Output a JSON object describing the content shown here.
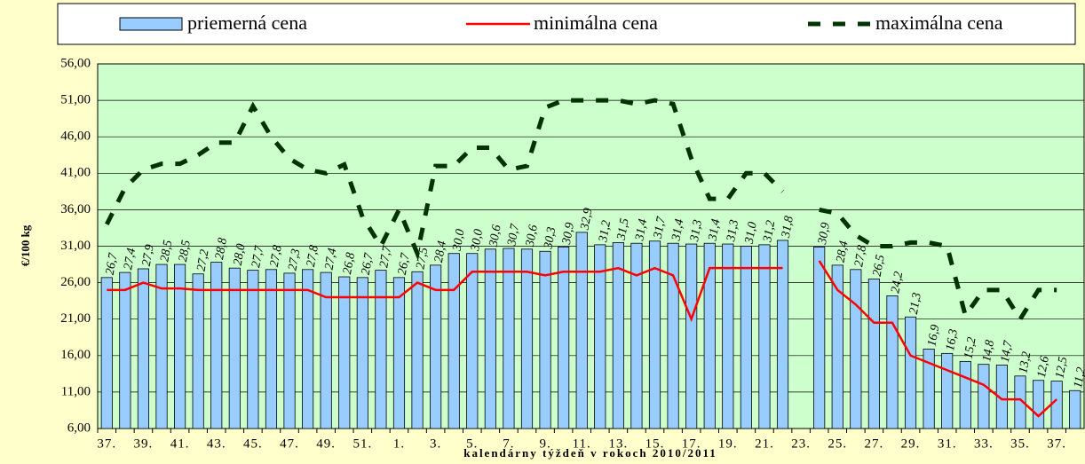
{
  "chart_data": {
    "type": "bar-line",
    "x_label": "kalendárny týždeň v rokoch 2010/2011",
    "y_label": "€/100 kg",
    "categories": [
      "37.",
      null,
      "39.",
      null,
      "41.",
      null,
      "43.",
      null,
      "45.",
      null,
      "47.",
      null,
      "49.",
      null,
      "51.",
      null,
      "1.",
      null,
      "3.",
      null,
      "5.",
      null,
      "7.",
      null,
      "9.",
      null,
      "11.",
      null,
      "13.",
      null,
      "15.",
      null,
      "17.",
      null,
      "19.",
      null,
      "21.",
      null,
      "23.",
      null,
      "25.",
      null,
      "27.",
      null,
      "29.",
      null,
      "31.",
      null,
      "33.",
      null,
      "35.",
      null,
      "37.",
      null
    ],
    "series": [
      {
        "name": "priemerná cena",
        "kind": "bar",
        "color": "#99ccff",
        "values": [
          26.7,
          27.4,
          27.9,
          28.5,
          28.5,
          27.2,
          28.8,
          28.0,
          27.7,
          27.8,
          27.3,
          27.8,
          27.4,
          26.8,
          26.7,
          27.7,
          26.7,
          27.5,
          28.4,
          30.0,
          30.0,
          30.6,
          30.7,
          30.6,
          30.3,
          30.9,
          32.9,
          31.2,
          31.5,
          31.4,
          31.7,
          31.4,
          31.3,
          31.4,
          31.3,
          31.0,
          31.2,
          31.8,
          null,
          30.9,
          28.4,
          27.8,
          26.5,
          24.2,
          21.3,
          16.9,
          16.3,
          15.2,
          14.8,
          14.7,
          13.2,
          12.6,
          12.5,
          11.2
        ],
        "value_labels": [
          "26,7",
          "27,4",
          "27,9",
          "28,5",
          "28,5",
          "27,2",
          "28,8",
          "28,0",
          "27,7",
          "27,8",
          "27,3",
          "27,8",
          "27,4",
          "26,8",
          "26,7",
          "27,7",
          "26,7",
          "27,5",
          "28,4",
          "30,0",
          "30,0",
          "30,6",
          "30,7",
          "30,6",
          "30,3",
          "30,9",
          "32,9",
          "31,2",
          "31,5",
          "31,4",
          "31,7",
          "31,4",
          "31,3",
          "31,4",
          "31,3",
          "31,0",
          "31,2",
          "31,8",
          null,
          "30,9",
          "28,4",
          "27,8",
          "26,5",
          "24,2",
          "21,3",
          "16,9",
          "16,3",
          "15,2",
          "14,8",
          "14,7",
          "13,2",
          "12,6",
          "12,5",
          "11,2"
        ]
      },
      {
        "name": "minimálna cena",
        "kind": "line",
        "color": "#ff0000",
        "values": [
          25,
          25,
          26,
          25.2,
          25.2,
          25,
          25,
          25,
          25,
          25,
          25,
          25,
          24,
          24,
          24,
          24,
          24,
          26,
          25,
          25,
          27.5,
          27.5,
          27.5,
          27.5,
          27,
          27.5,
          27.5,
          27.5,
          28,
          27,
          28,
          27,
          21,
          28,
          28,
          28,
          28,
          28,
          null,
          29,
          25,
          23,
          20.5,
          20.5,
          16,
          15,
          14,
          13,
          12,
          10,
          10,
          7.7,
          10,
          null
        ]
      },
      {
        "name": "maximálna cena",
        "kind": "dashed",
        "color": "#003300",
        "values": [
          34,
          39,
          41.5,
          42.3,
          42.3,
          43.5,
          45.2,
          45.2,
          50.2,
          46,
          43,
          41.5,
          41,
          42.2,
          35,
          31,
          36,
          30,
          42,
          42,
          44.5,
          44.5,
          41.5,
          42,
          50,
          51,
          51,
          51,
          51,
          50.5,
          51,
          50.5,
          43,
          37.5,
          37.5,
          41,
          41,
          38.5,
          null,
          36,
          35.5,
          32.5,
          31,
          31,
          31.5,
          31.5,
          31,
          21.5,
          25,
          25,
          21,
          25,
          25,
          null
        ]
      }
    ],
    "ylim": [
      6,
      56
    ],
    "yticks": [
      {
        "value": 6,
        "label": "6,00"
      },
      {
        "value": 11,
        "label": "11,00"
      },
      {
        "value": 16,
        "label": "16,00"
      },
      {
        "value": 21,
        "label": "21,00"
      },
      {
        "value": 26,
        "label": "26,00"
      },
      {
        "value": 31,
        "label": "31,00"
      },
      {
        "value": 36,
        "label": "36,00"
      },
      {
        "value": 41,
        "label": "41,00"
      },
      {
        "value": 46,
        "label": "46,00"
      },
      {
        "value": 51,
        "label": "51,00"
      },
      {
        "value": 56,
        "label": "56,00"
      }
    ],
    "grid": true
  }
}
